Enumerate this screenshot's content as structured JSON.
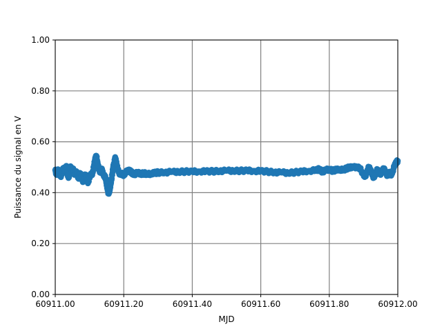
{
  "chart_data": {
    "type": "scatter",
    "xlabel": "MJD",
    "ylabel": "Puissance du signal en V",
    "xlim": [
      60911.0,
      60912.0
    ],
    "ylim": [
      0.0,
      1.0
    ],
    "xticks": [
      "60911.00",
      "60911.20",
      "60911.40",
      "60911.60",
      "60911.80",
      "60912.00"
    ],
    "xtick_values": [
      60911.0,
      60911.2,
      60911.4,
      60911.6,
      60911.8,
      60912.0
    ],
    "yticks": [
      "0.00",
      "0.20",
      "0.40",
      "0.60",
      "0.80",
      "1.00"
    ],
    "ytick_values": [
      0.0,
      0.2,
      0.4,
      0.6,
      0.8,
      1.0
    ],
    "grid": true,
    "marker_color": "#1f77b4",
    "grid_color": "#808080",
    "series": [
      {
        "points": [
          [
            60911.0,
            0.488
          ],
          [
            60911.004,
            0.47
          ],
          [
            60911.008,
            0.492
          ],
          [
            60911.012,
            0.475
          ],
          [
            60911.016,
            0.465
          ],
          [
            60911.02,
            0.478
          ],
          [
            60911.024,
            0.497
          ],
          [
            60911.028,
            0.485
          ],
          [
            60911.032,
            0.505
          ],
          [
            60911.036,
            0.47
          ],
          [
            60911.04,
            0.46
          ],
          [
            60911.044,
            0.502
          ],
          [
            60911.048,
            0.488
          ],
          [
            60911.052,
            0.495
          ],
          [
            60911.056,
            0.47
          ],
          [
            60911.06,
            0.485
          ],
          [
            60911.064,
            0.473
          ],
          [
            60911.068,
            0.455
          ],
          [
            60911.072,
            0.478
          ],
          [
            60911.076,
            0.465
          ],
          [
            60911.08,
            0.445
          ],
          [
            60911.084,
            0.46
          ],
          [
            60911.088,
            0.47
          ],
          [
            60911.092,
            0.455
          ],
          [
            60911.096,
            0.44
          ],
          [
            60911.1,
            0.46
          ],
          [
            60911.104,
            0.475
          ],
          [
            60911.108,
            0.47
          ],
          [
            60911.112,
            0.5
          ],
          [
            60911.116,
            0.53
          ],
          [
            60911.12,
            0.545
          ],
          [
            60911.124,
            0.515
          ],
          [
            60911.128,
            0.49
          ],
          [
            60911.132,
            0.48
          ],
          [
            60911.136,
            0.495
          ],
          [
            60911.14,
            0.47
          ],
          [
            60911.144,
            0.465
          ],
          [
            60911.148,
            0.455
          ],
          [
            60911.15,
            0.43
          ],
          [
            60911.152,
            0.42
          ],
          [
            60911.155,
            0.398
          ],
          [
            60911.158,
            0.405
          ],
          [
            60911.16,
            0.42
          ],
          [
            60911.163,
            0.44
          ],
          [
            60911.166,
            0.47
          ],
          [
            60911.169,
            0.5
          ],
          [
            60911.172,
            0.515
          ],
          [
            60911.175,
            0.54
          ],
          [
            60911.178,
            0.52
          ],
          [
            60911.182,
            0.495
          ],
          [
            60911.186,
            0.48
          ],
          [
            60911.19,
            0.47
          ],
          [
            60911.195,
            0.475
          ],
          [
            60911.2,
            0.47
          ],
          [
            60911.206,
            0.478
          ],
          [
            60911.212,
            0.49
          ],
          [
            60911.218,
            0.485
          ],
          [
            60911.224,
            0.478
          ],
          [
            60911.23,
            0.472
          ],
          [
            60911.24,
            0.478
          ],
          [
            60911.25,
            0.474
          ],
          [
            60911.26,
            0.476
          ],
          [
            60911.27,
            0.472
          ],
          [
            60911.28,
            0.476
          ],
          [
            60911.29,
            0.478
          ],
          [
            60911.3,
            0.479
          ],
          [
            60911.32,
            0.48
          ],
          [
            60911.34,
            0.481
          ],
          [
            60911.36,
            0.482
          ],
          [
            60911.38,
            0.483
          ],
          [
            60911.4,
            0.483
          ],
          [
            60911.42,
            0.484
          ],
          [
            60911.44,
            0.484
          ],
          [
            60911.46,
            0.484
          ],
          [
            60911.48,
            0.485
          ],
          [
            60911.5,
            0.486
          ],
          [
            60911.52,
            0.486
          ],
          [
            60911.54,
            0.486
          ],
          [
            60911.56,
            0.487
          ],
          [
            60911.58,
            0.486
          ],
          [
            60911.6,
            0.485
          ],
          [
            60911.62,
            0.483
          ],
          [
            60911.64,
            0.48
          ],
          [
            60911.66,
            0.479
          ],
          [
            60911.68,
            0.478
          ],
          [
            60911.7,
            0.48
          ],
          [
            60911.72,
            0.483
          ],
          [
            60911.74,
            0.486
          ],
          [
            60911.76,
            0.488
          ],
          [
            60911.77,
            0.492
          ],
          [
            60911.78,
            0.482
          ],
          [
            60911.79,
            0.488
          ],
          [
            60911.8,
            0.492
          ],
          [
            60911.81,
            0.486
          ],
          [
            60911.82,
            0.49
          ],
          [
            60911.83,
            0.493
          ],
          [
            60911.84,
            0.488
          ],
          [
            60911.85,
            0.495
          ],
          [
            60911.86,
            0.5
          ],
          [
            60911.87,
            0.498
          ],
          [
            60911.88,
            0.502
          ],
          [
            60911.89,
            0.495
          ],
          [
            60911.9,
            0.47
          ],
          [
            60911.905,
            0.465
          ],
          [
            60911.91,
            0.48
          ],
          [
            60911.915,
            0.5
          ],
          [
            60911.92,
            0.49
          ],
          [
            60911.925,
            0.47
          ],
          [
            60911.93,
            0.46
          ],
          [
            60911.935,
            0.475
          ],
          [
            60911.94,
            0.49
          ],
          [
            60911.945,
            0.482
          ],
          [
            60911.95,
            0.47
          ],
          [
            60911.955,
            0.488
          ],
          [
            60911.96,
            0.493
          ],
          [
            60911.965,
            0.478
          ],
          [
            60911.97,
            0.468
          ],
          [
            60911.975,
            0.478
          ],
          [
            60911.98,
            0.47
          ],
          [
            60911.985,
            0.483
          ],
          [
            60911.99,
            0.505
          ],
          [
            60911.995,
            0.518
          ],
          [
            60912.0,
            0.525
          ]
        ]
      }
    ]
  }
}
